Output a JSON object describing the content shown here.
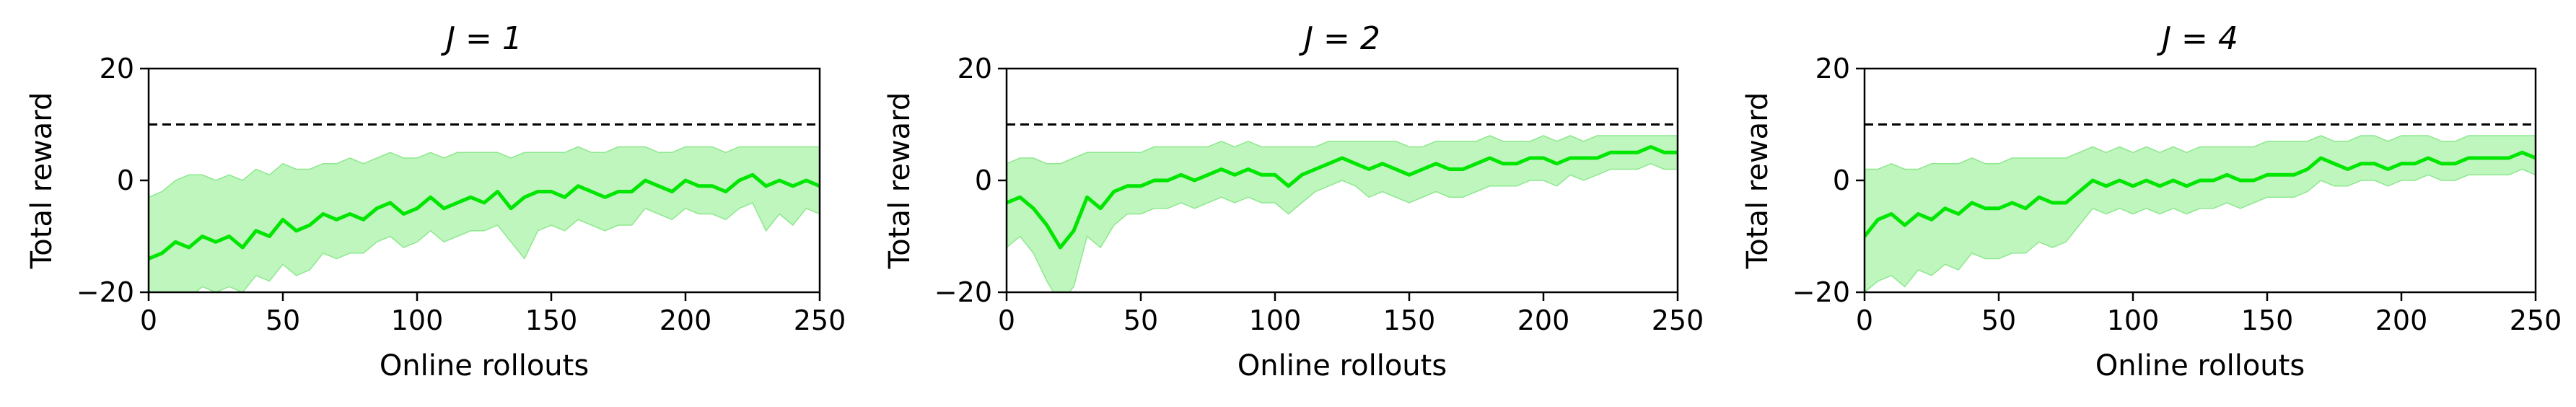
{
  "figure": {
    "colors": {
      "line": "#00e600",
      "band": "#b3f5b3",
      "band_edge": "#8ee88e",
      "reference": "#000000",
      "axes": "#000000"
    }
  },
  "chart_data": [
    {
      "type": "line",
      "title": "J = 1",
      "xlabel": "Online rollouts",
      "ylabel": "Total reward",
      "xlim": [
        0,
        250
      ],
      "ylim": [
        -20,
        20
      ],
      "xticks": [
        0,
        50,
        100,
        150,
        200,
        250
      ],
      "yticks": [
        -20,
        0,
        20
      ],
      "grid": false,
      "reference_line": {
        "y": 10,
        "style": "dashed"
      },
      "series": [
        {
          "x": [
            0,
            5,
            10,
            15,
            20,
            25,
            30,
            35,
            40,
            45,
            50,
            55,
            60,
            65,
            70,
            75,
            80,
            85,
            90,
            95,
            100,
            105,
            110,
            115,
            120,
            125,
            130,
            135,
            140,
            145,
            150,
            155,
            160,
            165,
            170,
            175,
            180,
            185,
            190,
            195,
            200,
            205,
            210,
            215,
            220,
            225,
            230,
            235,
            240,
            245,
            250
          ],
          "values": [
            -14,
            -13,
            -11,
            -12,
            -10,
            -11,
            -10,
            -12,
            -9,
            -10,
            -7,
            -9,
            -8,
            -6,
            -7,
            -6,
            -7,
            -5,
            -4,
            -6,
            -5,
            -3,
            -5,
            -4,
            -3,
            -4,
            -2,
            -5,
            -3,
            -2,
            -2,
            -3,
            -1,
            -2,
            -3,
            -2,
            -2,
            0,
            -1,
            -2,
            0,
            -1,
            -1,
            -2,
            0,
            1,
            -1,
            0,
            -1,
            0,
            -1
          ],
          "lower": [
            -22,
            -21,
            -20,
            -21,
            -19,
            -20,
            -19,
            -20,
            -17,
            -18,
            -15,
            -17,
            -16,
            -13,
            -14,
            -13,
            -13,
            -11,
            -10,
            -12,
            -11,
            -9,
            -11,
            -10,
            -9,
            -9,
            -8,
            -11,
            -14,
            -9,
            -8,
            -9,
            -7,
            -8,
            -9,
            -8,
            -8,
            -5,
            -6,
            -7,
            -5,
            -6,
            -6,
            -7,
            -5,
            -4,
            -9,
            -6,
            -8,
            -5,
            -6
          ],
          "upper": [
            -3,
            -2,
            0,
            1,
            1,
            0,
            1,
            0,
            2,
            1,
            3,
            2,
            2,
            3,
            3,
            4,
            3,
            4,
            5,
            4,
            4,
            5,
            4,
            5,
            5,
            5,
            5,
            4,
            5,
            5,
            5,
            5,
            6,
            5,
            5,
            6,
            6,
            6,
            5,
            5,
            6,
            6,
            6,
            5,
            6,
            6,
            6,
            6,
            6,
            6,
            6
          ]
        }
      ]
    },
    {
      "type": "line",
      "title": "J = 2",
      "xlabel": "Online rollouts",
      "ylabel": "Total reward",
      "xlim": [
        0,
        250
      ],
      "ylim": [
        -20,
        20
      ],
      "xticks": [
        0,
        50,
        100,
        150,
        200,
        250
      ],
      "yticks": [
        -20,
        0,
        20
      ],
      "grid": false,
      "reference_line": {
        "y": 10,
        "style": "dashed"
      },
      "series": [
        {
          "x": [
            0,
            5,
            10,
            15,
            20,
            25,
            30,
            35,
            40,
            45,
            50,
            55,
            60,
            65,
            70,
            75,
            80,
            85,
            90,
            95,
            100,
            105,
            110,
            115,
            120,
            125,
            130,
            135,
            140,
            145,
            150,
            155,
            160,
            165,
            170,
            175,
            180,
            185,
            190,
            195,
            200,
            205,
            210,
            215,
            220,
            225,
            230,
            235,
            240,
            245,
            250
          ],
          "values": [
            -4,
            -3,
            -5,
            -8,
            -12,
            -9,
            -3,
            -5,
            -2,
            -1,
            -1,
            0,
            0,
            1,
            0,
            1,
            2,
            1,
            2,
            1,
            1,
            -1,
            1,
            2,
            3,
            4,
            3,
            2,
            3,
            2,
            1,
            2,
            3,
            2,
            2,
            3,
            4,
            3,
            3,
            4,
            4,
            3,
            4,
            4,
            4,
            5,
            5,
            5,
            6,
            5,
            5
          ],
          "lower": [
            -12,
            -10,
            -13,
            -18,
            -22,
            -19,
            -10,
            -12,
            -8,
            -6,
            -6,
            -5,
            -5,
            -4,
            -5,
            -4,
            -3,
            -4,
            -3,
            -4,
            -4,
            -6,
            -4,
            -2,
            -1,
            0,
            -1,
            -3,
            -2,
            -3,
            -4,
            -3,
            -2,
            -3,
            -3,
            -2,
            -1,
            -1,
            -1,
            0,
            0,
            -1,
            1,
            0,
            1,
            2,
            2,
            2,
            3,
            2,
            2
          ],
          "upper": [
            3,
            4,
            4,
            3,
            3,
            4,
            5,
            5,
            5,
            5,
            5,
            6,
            6,
            6,
            6,
            6,
            7,
            6,
            7,
            6,
            6,
            6,
            6,
            6,
            7,
            7,
            7,
            7,
            7,
            7,
            6,
            6,
            7,
            7,
            7,
            7,
            8,
            7,
            7,
            7,
            8,
            7,
            8,
            7,
            8,
            8,
            8,
            8,
            8,
            8,
            8
          ]
        }
      ]
    },
    {
      "type": "line",
      "title": "J = 4",
      "xlabel": "Online rollouts",
      "ylabel": "Total reward",
      "xlim": [
        0,
        250
      ],
      "ylim": [
        -20,
        20
      ],
      "xticks": [
        0,
        50,
        100,
        150,
        200,
        250
      ],
      "yticks": [
        -20,
        0,
        20
      ],
      "grid": false,
      "reference_line": {
        "y": 10,
        "style": "dashed"
      },
      "series": [
        {
          "x": [
            0,
            5,
            10,
            15,
            20,
            25,
            30,
            35,
            40,
            45,
            50,
            55,
            60,
            65,
            70,
            75,
            80,
            85,
            90,
            95,
            100,
            105,
            110,
            115,
            120,
            125,
            130,
            135,
            140,
            145,
            150,
            155,
            160,
            165,
            170,
            175,
            180,
            185,
            190,
            195,
            200,
            205,
            210,
            215,
            220,
            225,
            230,
            235,
            240,
            245,
            250
          ],
          "values": [
            -10,
            -7,
            -6,
            -8,
            -6,
            -7,
            -5,
            -6,
            -4,
            -5,
            -5,
            -4,
            -5,
            -3,
            -4,
            -4,
            -2,
            0,
            -1,
            0,
            -1,
            0,
            -1,
            0,
            -1,
            0,
            0,
            1,
            0,
            0,
            1,
            1,
            1,
            2,
            4,
            3,
            2,
            3,
            3,
            2,
            3,
            3,
            4,
            3,
            3,
            4,
            4,
            4,
            4,
            5,
            4
          ],
          "lower": [
            -20,
            -18,
            -17,
            -19,
            -16,
            -17,
            -15,
            -16,
            -13,
            -14,
            -14,
            -13,
            -13,
            -11,
            -12,
            -11,
            -8,
            -5,
            -6,
            -5,
            -6,
            -5,
            -6,
            -5,
            -6,
            -5,
            -5,
            -4,
            -5,
            -4,
            -3,
            -3,
            -3,
            -2,
            0,
            -1,
            -1,
            0,
            0,
            -1,
            0,
            0,
            1,
            0,
            0,
            1,
            1,
            1,
            1,
            2,
            1
          ],
          "upper": [
            2,
            2,
            3,
            2,
            2,
            3,
            3,
            3,
            4,
            3,
            3,
            4,
            4,
            4,
            4,
            4,
            5,
            6,
            5,
            6,
            5,
            6,
            5,
            6,
            5,
            6,
            6,
            6,
            6,
            6,
            7,
            7,
            7,
            7,
            8,
            7,
            7,
            8,
            8,
            7,
            8,
            8,
            8,
            7,
            7,
            8,
            8,
            8,
            8,
            8,
            8
          ]
        }
      ]
    }
  ]
}
